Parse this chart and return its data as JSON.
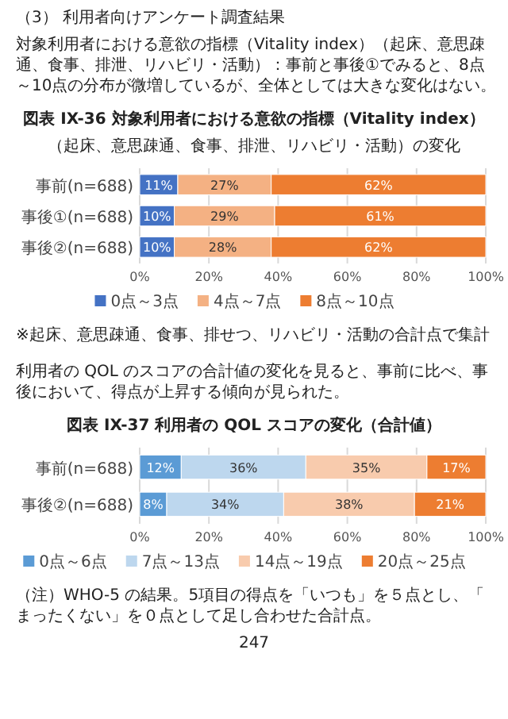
{
  "chart_data": [
    {
      "type": "bar",
      "orientation": "horizontal",
      "stacked": true,
      "title": "図表 IX-36 対象利用者における意欲の指標（Vitality index）",
      "subtitle": "（起床、意思疎通、食事、排泄、リハビリ・活動）の変化",
      "annotations": [
        "（3） 利用者向けアンケート調査結果",
        "対象利用者における意欲の指標（Vitality index）（起床、意思疎通、食事、排泄、リハビリ・活動）：事前と事後①でみると、8点～10点の分布が微増しているが、全体としては大きな変化はない。",
        "※起床、意思疎通、食事、排せつ、リハビリ・活動の合計点で集計"
      ],
      "categories": [
        "事前(n=688)",
        "事後①(n=688)",
        "事後②(n=688)"
      ],
      "series": [
        {
          "name": "0点～3点",
          "color": "#4472c4",
          "values": [
            11,
            10,
            10
          ],
          "value_labels": [
            "11%",
            "10%",
            "10%"
          ]
        },
        {
          "name": "4点～7点",
          "color": "#f4b183",
          "values": [
            27,
            29,
            28
          ],
          "value_labels": [
            "27%",
            "29%",
            "28%"
          ]
        },
        {
          "name": "8点～10点",
          "color": "#ed7d31",
          "values": [
            62,
            61,
            62
          ],
          "value_labels": [
            "62%",
            "61%",
            "62%"
          ]
        }
      ],
      "xlim": [
        0,
        100
      ],
      "xticks": [
        {
          "value": 0,
          "label": "0%"
        },
        {
          "value": 20,
          "label": "20%"
        },
        {
          "value": 40,
          "label": "40%"
        },
        {
          "value": 60,
          "label": "60%"
        },
        {
          "value": 80,
          "label": "80%"
        },
        {
          "value": 100,
          "label": "100%"
        }
      ],
      "grid": "x",
      "legend": "bottom"
    },
    {
      "type": "bar",
      "orientation": "horizontal",
      "stacked": true,
      "title": "図表 IX-37 利用者の QOL スコアの変化（合計値）",
      "annotations": [
        "利用者の QOL のスコアの合計値の変化を見ると、事前に比べ、事後において、得点が上昇する傾向が見られた。",
        "（注）WHO-5 の結果。5項目の得点を「いつも」を５点とし、「まったくない」を０点として足し合わせた合計点。",
        "247"
      ],
      "categories": [
        "事前(n=688)",
        "事後②(n=688)"
      ],
      "series": [
        {
          "name": "0点～6点",
          "color": "#5b9bd5",
          "values": [
            12,
            7.8
          ],
          "value_labels": [
            "12%",
            "8%"
          ]
        },
        {
          "name": "7点～13点",
          "color": "#bdd7ee",
          "values": [
            36,
            33.8
          ],
          "value_labels": [
            "36%",
            "34%"
          ]
        },
        {
          "name": "14点～19点",
          "color": "#f8cbad",
          "values": [
            35,
            37.8
          ],
          "value_labels": [
            "35%",
            "38%"
          ]
        },
        {
          "name": "20点～25点",
          "color": "#ed7d31",
          "values": [
            17,
            20.6
          ],
          "value_labels": [
            "17%",
            "21%"
          ]
        }
      ],
      "xlim": [
        0,
        100
      ],
      "xticks": [
        {
          "value": 0,
          "label": "0%"
        },
        {
          "value": 20,
          "label": "20%"
        },
        {
          "value": 40,
          "label": "40%"
        },
        {
          "value": 60,
          "label": "60%"
        },
        {
          "value": 80,
          "label": "80%"
        },
        {
          "value": 100,
          "label": "100%"
        }
      ],
      "grid": "x",
      "legend": "bottom"
    }
  ]
}
